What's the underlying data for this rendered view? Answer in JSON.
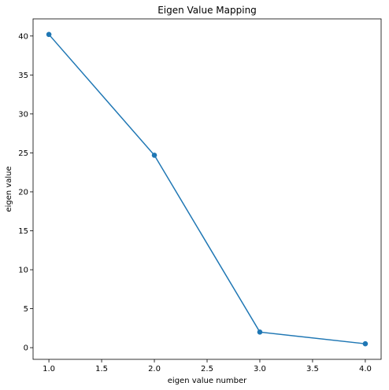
{
  "chart_data": {
    "type": "line",
    "title": "Eigen Value Mapping",
    "xlabel": "eigen value number",
    "ylabel": "eigen value",
    "x": [
      1.0,
      2.0,
      3.0,
      4.0
    ],
    "series": [
      {
        "values": [
          40.2,
          24.7,
          2.0,
          0.5
        ]
      }
    ],
    "xlim": [
      0.85,
      4.15
    ],
    "ylim": [
      -1.5,
      42.2
    ],
    "xticks": [
      1.0,
      1.5,
      2.0,
      2.5,
      3.0,
      3.5,
      4.0
    ],
    "xtick_labels": [
      "1.0",
      "1.5",
      "2.0",
      "2.5",
      "3.0",
      "3.5",
      "4.0"
    ],
    "yticks": [
      0,
      5,
      10,
      15,
      20,
      25,
      30,
      35,
      40
    ],
    "ytick_labels": [
      "0",
      "5",
      "10",
      "15",
      "20",
      "25",
      "30",
      "35",
      "40"
    ],
    "markers": true,
    "grid": false,
    "colors": {
      "series": "#1f77b4",
      "axis": "#000000",
      "background": "#ffffff"
    }
  }
}
